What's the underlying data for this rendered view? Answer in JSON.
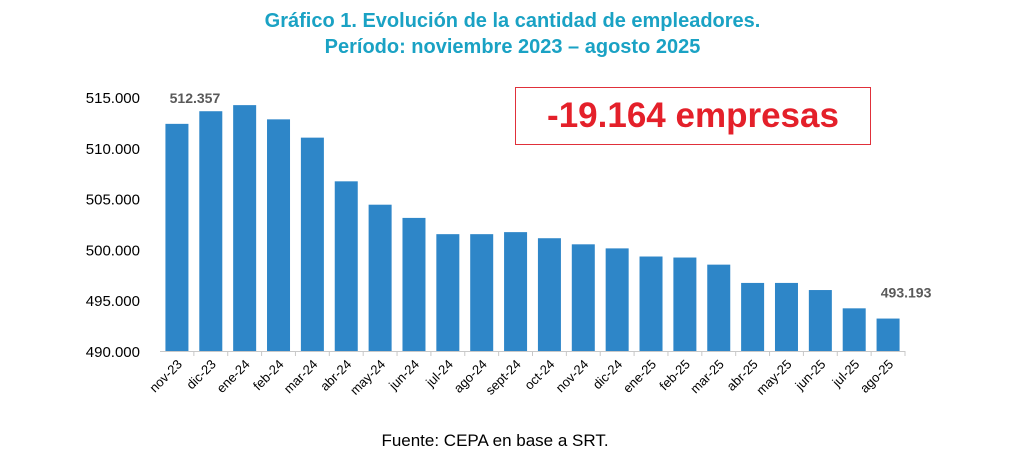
{
  "title_line1": "Gráfico 1. Evolución de la cantidad de empleadores.",
  "title_line2": "Período: noviembre 2023 – agosto 2025",
  "callout": "-19.164 empresas",
  "source": "Fuente: CEPA en base a SRT.",
  "colors": {
    "bar": "#2e86c8",
    "title": "#1aa2c4",
    "callout": "#e4202a",
    "label": "#595959"
  },
  "chart_data": {
    "type": "bar",
    "categories": [
      "nov-23",
      "dic-23",
      "ene-24",
      "feb-24",
      "mar-24",
      "abr-24",
      "may-24",
      "jun-24",
      "jul-24",
      "ago-24",
      "sept-24",
      "oct-24",
      "nov-24",
      "dic-24",
      "ene-25",
      "feb-25",
      "mar-25",
      "abr-25",
      "may-25",
      "jun-25",
      "jul-25",
      "ago-25"
    ],
    "values": [
      512357,
      513600,
      514200,
      512800,
      511000,
      506700,
      504400,
      503100,
      501500,
      501500,
      501700,
      501100,
      500500,
      500100,
      499300,
      499200,
      498500,
      496700,
      496700,
      496000,
      494200,
      493193
    ],
    "data_labels": [
      {
        "category": "nov-23",
        "text": "512.357"
      },
      {
        "category": "ago-25",
        "text": "493.193"
      }
    ],
    "yticks": [
      "490.000",
      "495.000",
      "500.000",
      "505.000",
      "510.000",
      "515.000"
    ],
    "ytick_values": [
      490000,
      495000,
      500000,
      505000,
      510000,
      515000
    ],
    "ylim": [
      490000,
      515000
    ],
    "grid": false
  }
}
